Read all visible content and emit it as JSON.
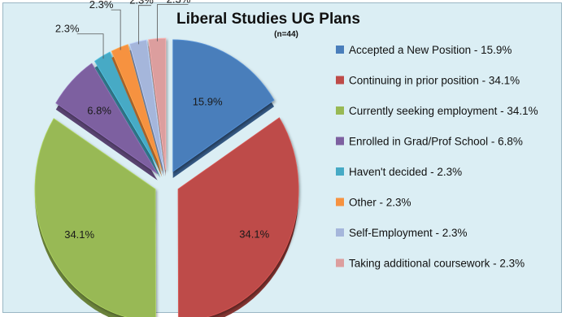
{
  "chart_data": {
    "type": "pie",
    "title": "Liberal Studies UG Plans",
    "subtitle": "(n=44)",
    "legend_placement": "right",
    "slices": [
      {
        "label": "Accepted a New Position",
        "value": 15.9,
        "display": "15.9%",
        "color": "#4a7ebb"
      },
      {
        "label": "Continuing in prior position",
        "value": 34.1,
        "display": "34.1%",
        "color": "#be4b48"
      },
      {
        "label": "Currently seeking employment",
        "value": 34.1,
        "display": "34.1%",
        "color": "#98b954"
      },
      {
        "label": "Enrolled in Grad/Prof School",
        "value": 6.8,
        "display": "6.8%",
        "color": "#7d60a0"
      },
      {
        "label": "Haven't decided",
        "value": 2.3,
        "display": "2.3%",
        "color": "#46aac5"
      },
      {
        "label": "Other",
        "value": 2.3,
        "display": "2.3%",
        "color": "#f69240"
      },
      {
        "label": "Self-Employment",
        "value": 2.3,
        "display": "2.3%",
        "color": "#a5b6db"
      },
      {
        "label": "Taking additional coursework",
        "value": 2.3,
        "display": "2.3%",
        "color": "#dc9e9e"
      }
    ],
    "legend_entries": [
      "Accepted a New Position - 15.9%",
      "Continuing in prior position - 34.1%",
      "Currently seeking employment - 34.1%",
      "Enrolled in Grad/Prof School - 6.8%",
      "Haven't decided - 2.3%",
      "Other - 2.3%",
      "Self-Employment - 2.3%",
      "Taking additional coursework - 2.3%"
    ]
  }
}
